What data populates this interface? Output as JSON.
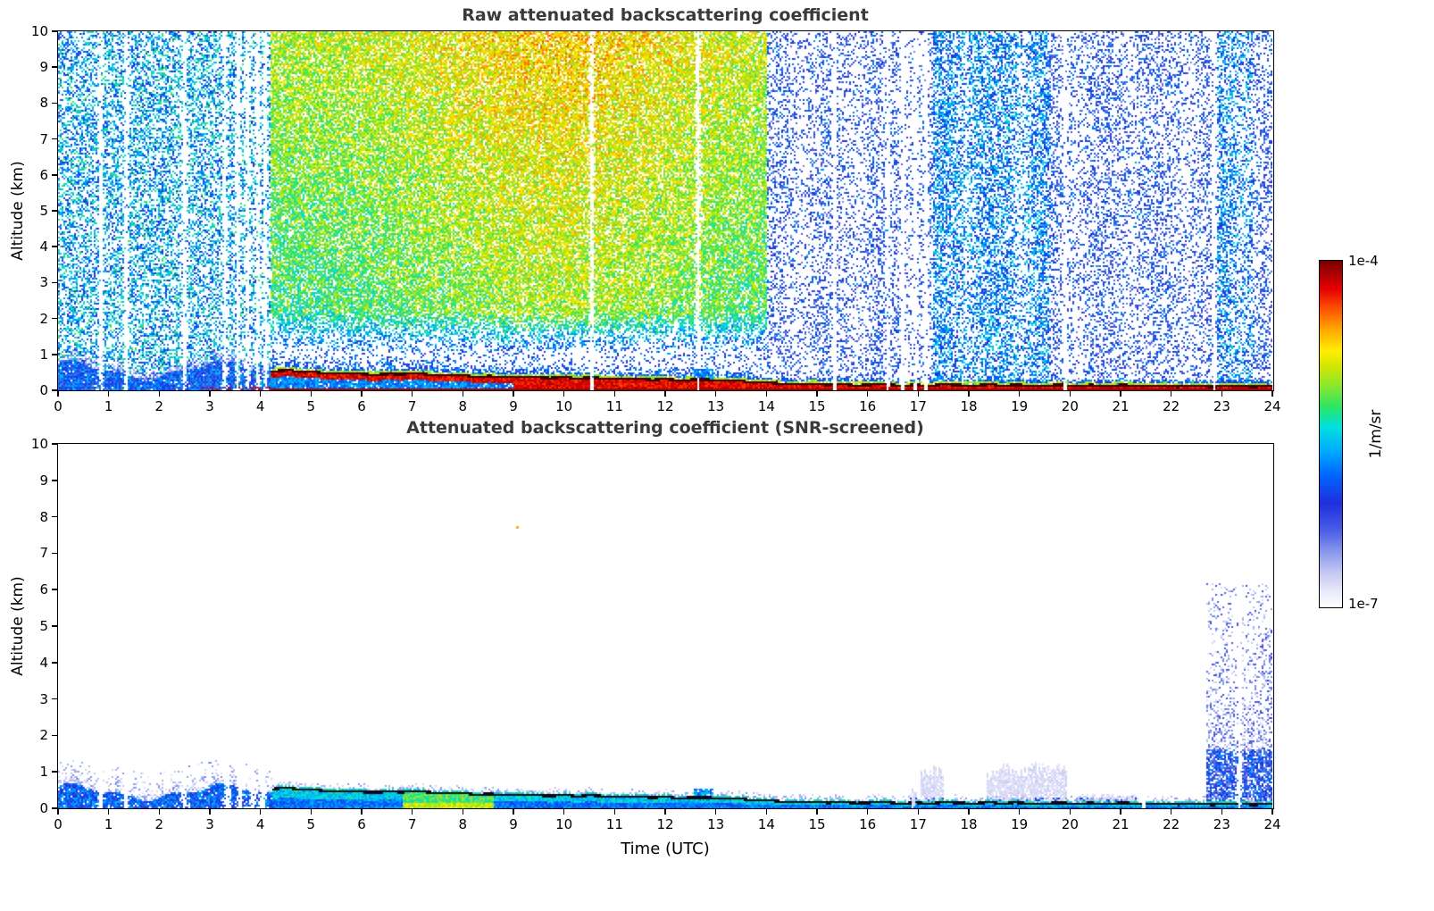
{
  "figure": {
    "background": "#ffffff",
    "title_color": "#3a3a3a",
    "axis_color": "#000000"
  },
  "colorbar": {
    "top_label": "1e-4",
    "bottom_label": "1e-7",
    "unit_label": "1/m/sr",
    "min": 1e-07,
    "max": 0.0001,
    "scale": "log",
    "stops": [
      [
        0.0,
        "#ffffff"
      ],
      [
        0.05,
        "#e6e6fa"
      ],
      [
        0.1,
        "#c3c8f2"
      ],
      [
        0.16,
        "#8898ec"
      ],
      [
        0.22,
        "#4b5fe6"
      ],
      [
        0.3,
        "#1f2fdd"
      ],
      [
        0.38,
        "#0066ff"
      ],
      [
        0.45,
        "#00aaff"
      ],
      [
        0.52,
        "#00e0e0"
      ],
      [
        0.58,
        "#2ee663"
      ],
      [
        0.64,
        "#8ce62e"
      ],
      [
        0.7,
        "#d8e600"
      ],
      [
        0.74,
        "#ffee00"
      ],
      [
        0.8,
        "#ffaa00"
      ],
      [
        0.86,
        "#ff5500"
      ],
      [
        0.92,
        "#e60000"
      ],
      [
        1.0,
        "#7a0000"
      ]
    ]
  },
  "chart_data": [
    {
      "type": "heatmap",
      "title": "Raw attenuated backscattering coefficient",
      "xlabel": "",
      "ylabel": "Altitude (km)",
      "xlim": [
        0,
        24
      ],
      "ylim": [
        0,
        10
      ],
      "xticks": [
        0,
        1,
        2,
        3,
        4,
        5,
        6,
        7,
        8,
        9,
        10,
        11,
        12,
        13,
        14,
        15,
        16,
        17,
        18,
        19,
        20,
        21,
        22,
        23,
        24
      ],
      "yticks": [
        0,
        1,
        2,
        3,
        4,
        5,
        6,
        7,
        8,
        9,
        10
      ],
      "value_units": "1/m/sr",
      "value_range": [
        1e-07,
        0.0001
      ],
      "value_scale": "log",
      "grid": false,
      "legend": "shared colorbar right, 1e-7 to 1e-4 1/m/sr",
      "description": "Time-height curtain of raw ceilometer attenuated backscatter. Full-depth speckle noise: cyan-blue 00-04 UTC, green-yellow-orange 04-14 UTC (warmest aloft around 08-13 UTC), sparse blue with white vertical gaps 14-24 UTC and cyan columns near 17.3-19.6 and 22.9-23.6 UTC. Blue aerosol layer below ~1 km before 04 UTC, then a strong red surface layer capped by a dark-red line descending from ~0.55 km at 04:15 UTC to ~0.1 km by 24 UTC.",
      "features": {
        "aerosol_end": 4.2,
        "noise": {
          "left": {
            "density": 0.45,
            "value": 0.44,
            "spread": 0.15
          },
          "mid": {
            "density": 0.8,
            "value": 0.56,
            "spread": 0.11,
            "alt_gain": 0.11,
            "hot_center": 10,
            "hot_width": 3.2,
            "hot_gain": 0.09,
            "low_alt_density": 0.18,
            "low_alt_value": 0.34
          },
          "right": {
            "density": 0.3,
            "value": 0.3,
            "spread": 0.13
          }
        },
        "cyan_columns": [
          [
            17.3,
            19.6
          ],
          [
            22.9,
            23.6
          ]
        ],
        "white_stripes": [
          0.85,
          1.35,
          2.5,
          3.3,
          3.55,
          3.75,
          3.95,
          4.1,
          10.55,
          12.65,
          15.35,
          16.4,
          16.7,
          16.95,
          17.15,
          19.9,
          22.85
        ],
        "cloud_line": [
          [
            4.25,
            0.52
          ],
          [
            4.6,
            0.55
          ],
          [
            5,
            0.5
          ],
          [
            5.5,
            0.47
          ],
          [
            6,
            0.46
          ],
          [
            6.5,
            0.44
          ],
          [
            7,
            0.47
          ],
          [
            7.5,
            0.44
          ],
          [
            8,
            0.4
          ],
          [
            8.5,
            0.38
          ],
          [
            9,
            0.37
          ],
          [
            9.5,
            0.36
          ],
          [
            10,
            0.35
          ],
          [
            10.5,
            0.34
          ],
          [
            11,
            0.33
          ],
          [
            11.5,
            0.31
          ],
          [
            12,
            0.3
          ],
          [
            12.5,
            0.29
          ],
          [
            13,
            0.28
          ],
          [
            13.3,
            0.27
          ],
          [
            13.6,
            0.24
          ],
          [
            14,
            0.2
          ],
          [
            14.5,
            0.18
          ],
          [
            15,
            0.17
          ],
          [
            16,
            0.15
          ],
          [
            17,
            0.14
          ],
          [
            18,
            0.15
          ],
          [
            19,
            0.14
          ],
          [
            20,
            0.13
          ],
          [
            21,
            0.13
          ],
          [
            22,
            0.12
          ],
          [
            23,
            0.12
          ],
          [
            24,
            0.11
          ]
        ],
        "blue_blob": [
          12.55,
          12.95
        ]
      }
    },
    {
      "type": "heatmap",
      "title": "Attenuated backscattering coefficient (SNR-screened)",
      "xlabel": "Time (UTC)",
      "ylabel": "Altitude (km)",
      "xlim": [
        0,
        24
      ],
      "ylim": [
        0,
        10
      ],
      "xticks": [
        0,
        1,
        2,
        3,
        4,
        5,
        6,
        7,
        8,
        9,
        10,
        11,
        12,
        13,
        14,
        15,
        16,
        17,
        18,
        19,
        20,
        21,
        22,
        23,
        24
      ],
      "yticks": [
        0,
        1,
        2,
        3,
        4,
        5,
        6,
        7,
        8,
        9,
        10
      ],
      "value_units": "1/m/sr",
      "value_range": [
        1e-07,
        0.0001
      ],
      "value_scale": "log",
      "grid": false,
      "legend": "shared colorbar right, 1e-7 to 1e-4 1/m/sr",
      "description": "Same field after SNR screening: background noise removed. Blue boundary-layer signal below ~1.3 km before 04 UTC, dark capped layer descending from ~0.55 km at 04:15 UTC to ~0.1 km by 24 UTC with cyan-green backscatter below it (green-yellow near 07-08.5 UTC), faint lavender patches near 17-20 and 20-21.3 UTC, a light speckle column up to ~6 km during 22.7-24 UTC, and one isolated speck near 09 UTC at 7.75 km.",
      "features": {
        "aerosol_end": 4.25,
        "gap_stripes": [
          0.85,
          1.35,
          2.5,
          3.35,
          3.6,
          3.85,
          4.05,
          16.9,
          21.45,
          23.35
        ],
        "cloud_line": [
          [
            4.25,
            0.52
          ],
          [
            4.6,
            0.55
          ],
          [
            5,
            0.5
          ],
          [
            5.5,
            0.47
          ],
          [
            6,
            0.46
          ],
          [
            6.5,
            0.44
          ],
          [
            7,
            0.47
          ],
          [
            7.5,
            0.44
          ],
          [
            8,
            0.4
          ],
          [
            8.5,
            0.38
          ],
          [
            9,
            0.37
          ],
          [
            9.5,
            0.36
          ],
          [
            10,
            0.35
          ],
          [
            10.5,
            0.34
          ],
          [
            11,
            0.33
          ],
          [
            11.5,
            0.31
          ],
          [
            12,
            0.3
          ],
          [
            12.5,
            0.29
          ],
          [
            13,
            0.28
          ],
          [
            13.3,
            0.27
          ],
          [
            13.6,
            0.24
          ],
          [
            14,
            0.2
          ],
          [
            14.5,
            0.18
          ],
          [
            15,
            0.17
          ],
          [
            16,
            0.15
          ],
          [
            17,
            0.14
          ],
          [
            18,
            0.15
          ],
          [
            19,
            0.14
          ],
          [
            20,
            0.13
          ],
          [
            21,
            0.13
          ],
          [
            22,
            0.12
          ],
          [
            23,
            0.12
          ],
          [
            24,
            0.11
          ]
        ],
        "green_patch": [
          6.8,
          8.6
        ],
        "lavender_patches": [
          [
            16.82,
            16.99,
            0.5
          ],
          [
            17.05,
            17.5,
            1.05
          ],
          [
            18.35,
            19.95,
            1.1
          ],
          [
            20.1,
            21.3,
            0.35
          ]
        ],
        "speckle_column": {
          "t0": 22.7,
          "t1": 24,
          "ztop": 6.2
        },
        "blue_blob": [
          12.55,
          12.95
        ],
        "speck": [
          9.05,
          7.75
        ]
      }
    }
  ]
}
